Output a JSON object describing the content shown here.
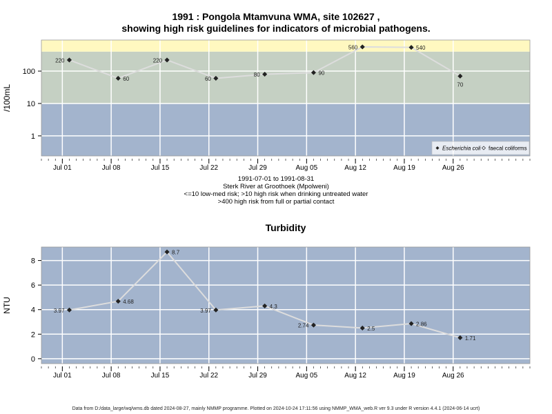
{
  "header": {
    "title_line1": "1991 : Pongola Mtamvuna WMA, site 102627 ,",
    "title_line2": "showing high risk guidelines for indicators of microbial pathogens."
  },
  "info": {
    "date_range": "1991-07-01 to 1991-08-31",
    "site_name": "Sterk River at Groothoek (Mpolweni)",
    "risk_note1": "<=10 low-med risk; >10 high risk when drinking untreated water",
    "risk_note2": ">400 high risk from full or partial contact"
  },
  "footer": {
    "text": "Data from D:/data_large/wq/wms.db dated 2024-08-27, mainly NMMP programme. Plotted on 2024-10-24 17:11:56 using NMMP_WMA_web.R ver 9.3 under R version 4.4.1 (2024-06-14 ucrt)"
  },
  "colors": {
    "low_band": "#a3b4cd",
    "mid_band": "#c5d0c3",
    "high_band": "#fff8c0",
    "line": "#dddddd",
    "grid": "#ffffff",
    "marker": "#222222"
  },
  "chart_data": [
    {
      "type": "line",
      "title": "",
      "ylabel": "/100mL",
      "yscale": "log",
      "yticks": [
        1,
        10,
        100
      ],
      "ytick_labels": [
        "1",
        "10",
        "100"
      ],
      "xticks": [
        "Jul 01",
        "Jul 08",
        "Jul 15",
        "Jul 22",
        "Jul 29",
        "Aug 05",
        "Aug 12",
        "Aug 19",
        "Aug 26"
      ],
      "xtick_dates": [
        "1991-07-01",
        "1991-07-08",
        "1991-07-15",
        "1991-07-22",
        "1991-07-29",
        "1991-08-05",
        "1991-08-12",
        "1991-08-19",
        "1991-08-26"
      ],
      "xlim": [
        "1991-06-28",
        "1991-09-06"
      ],
      "bands": [
        {
          "from": 0,
          "to": 10,
          "color": "#a3b4cd"
        },
        {
          "from": 10,
          "to": 400,
          "color": "#c5d0c3"
        },
        {
          "from": 400,
          "to": 1000,
          "color": "#fff8c0"
        }
      ],
      "legend": {
        "position": "bottom-right",
        "entries": [
          {
            "label": "Escherichia coli",
            "marker": "filled-diamond",
            "italic": true
          },
          {
            "label": "faecal coliforms",
            "marker": "open-diamond",
            "italic": false
          }
        ]
      },
      "series": [
        {
          "name": "Escherichia coli",
          "x": [
            "1991-07-02",
            "1991-07-09",
            "1991-07-16",
            "1991-07-23",
            "1991-07-30",
            "1991-08-06",
            "1991-08-13",
            "1991-08-20",
            "1991-08-27"
          ],
          "y": [
            220,
            60,
            220,
            60,
            80,
            90,
            560,
            540,
            70
          ],
          "labels": [
            "220",
            "60",
            "220",
            "60",
            "80",
            "90",
            "560",
            "540",
            "70"
          ],
          "label_side": [
            "left",
            "right",
            "left",
            "left",
            "left",
            "right",
            "left",
            "right",
            "below"
          ]
        }
      ]
    },
    {
      "type": "line",
      "title": "Turbidity",
      "ylabel": "NTU",
      "ylim": [
        -0.4,
        9.1
      ],
      "yticks": [
        0,
        2,
        4,
        6,
        8
      ],
      "ytick_labels": [
        "0",
        "2",
        "4",
        "6",
        "8"
      ],
      "xticks": [
        "Jul 01",
        "Jul 08",
        "Jul 15",
        "Jul 22",
        "Jul 29",
        "Aug 05",
        "Aug 12",
        "Aug 19",
        "Aug 26"
      ],
      "xtick_dates": [
        "1991-07-01",
        "1991-07-08",
        "1991-07-15",
        "1991-07-22",
        "1991-07-29",
        "1991-08-05",
        "1991-08-12",
        "1991-08-19",
        "1991-08-26"
      ],
      "xlim": [
        "1991-06-28",
        "1991-09-06"
      ],
      "series": [
        {
          "name": "Turbidity",
          "x": [
            "1991-07-02",
            "1991-07-09",
            "1991-07-16",
            "1991-07-23",
            "1991-07-30",
            "1991-08-06",
            "1991-08-13",
            "1991-08-20",
            "1991-08-27"
          ],
          "y": [
            3.97,
            4.68,
            8.7,
            3.97,
            4.3,
            2.74,
            2.5,
            2.86,
            1.71
          ],
          "labels": [
            "3.97",
            "4.68",
            "8.7",
            "3.97",
            "4.3",
            "2.74",
            "2.5",
            "2.86",
            "1.71"
          ],
          "label_side": [
            "left",
            "right",
            "right",
            "left",
            "right",
            "left",
            "right",
            "right",
            "right"
          ]
        }
      ]
    }
  ]
}
